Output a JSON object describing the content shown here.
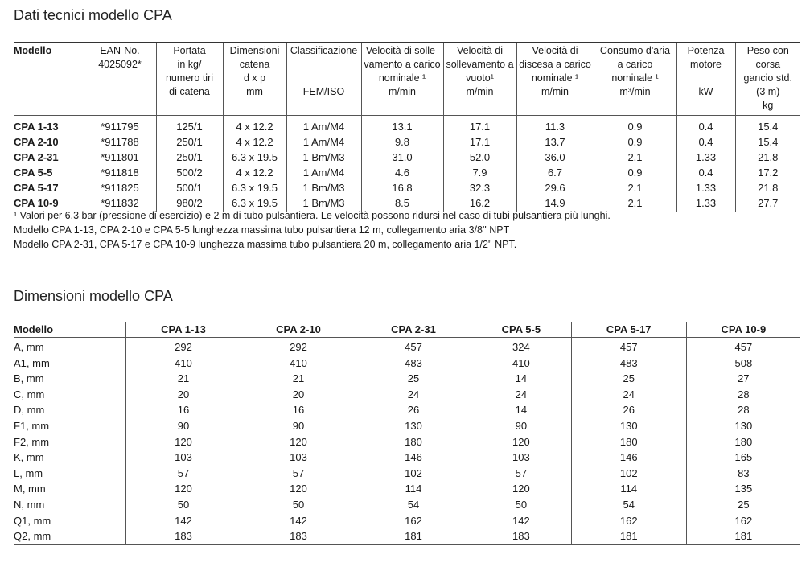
{
  "tech": {
    "title": "Dati tecnici modello CPA",
    "headers": [
      [
        "Modello"
      ],
      [
        "EAN-No.",
        "4025092*"
      ],
      [
        "Portata",
        "in kg/",
        "numero tiri",
        "di catena"
      ],
      [
        "Dimensioni",
        "catena",
        "d x p",
        "mm"
      ],
      [
        "Classificazione",
        "",
        "",
        "FEM/ISO"
      ],
      [
        "Velocità di solle-",
        "vamento a carico",
        "nominale ¹",
        "m/min"
      ],
      [
        "Velocità di",
        "sollevamento a",
        "vuoto¹",
        "m/min"
      ],
      [
        "Velocità di",
        "discesa a carico",
        "nominale ¹",
        "m/min"
      ],
      [
        "Consumo d'aria",
        "a carico",
        "nominale ¹",
        "m³/min"
      ],
      [
        "Potenza",
        "motore",
        "",
        "kW"
      ],
      [
        "Peso con corsa",
        "gancio std.",
        "(3 m)",
        "kg"
      ]
    ],
    "rows": [
      [
        "CPA 1-13",
        "*911795",
        "125/1",
        "4 x 12.2",
        "1 Am/M4",
        "13.1",
        "17.1",
        "11.3",
        "0.9",
        "0.4",
        "15.4"
      ],
      [
        "CPA 2-10",
        "*911788",
        "250/1",
        "4 x 12.2",
        "1 Am/M4",
        "9.8",
        "17.1",
        "13.7",
        "0.9",
        "0.4",
        "15.4"
      ],
      [
        "CPA 2-31",
        "*911801",
        "250/1",
        "6.3 x 19.5",
        "1 Bm/M3",
        "31.0",
        "52.0",
        "36.0",
        "2.1",
        "1.33",
        "21.8"
      ],
      [
        "CPA 5-5",
        "*911818",
        "500/2",
        "4 x 12.2",
        "1 Am/M4",
        "4.6",
        "7.9",
        "6.7",
        "0.9",
        "0.4",
        "17.2"
      ],
      [
        "CPA 5-17",
        "*911825",
        "500/1",
        "6.3 x 19.5",
        "1 Bm/M3",
        "16.8",
        "32.3",
        "29.6",
        "2.1",
        "1.33",
        "21.8"
      ],
      [
        "CPA 10-9",
        "*911832",
        "980/2",
        "6.3 x 19.5",
        "1 Bm/M3",
        "8.5",
        "16.2",
        "14.9",
        "2.1",
        "1.33",
        "27.7"
      ]
    ],
    "notes": [
      "¹ Valori per 6.3 bar (pressione di esercizio) e 2 m di tubo pulsantiera. Le velocità possono ridursi nel caso di tubi pulsantiera più lunghi.",
      "Modello CPA 1-13, CPA 2-10 e CPA 5-5 lunghezza massima tubo pulsantiera 12 m, collegamento aria 3/8'' NPT",
      "Modello CPA 2-31, CPA 5-17 e CPA 10-9 lunghezza massima tubo pulsantiera 20 m, collegamento aria 1/2'' NPT."
    ]
  },
  "dims": {
    "title": "Dimensioni modello CPA",
    "headers": [
      "Modello",
      "CPA 1-13",
      "CPA 2-10",
      "CPA 2-31",
      "CPA 5-5",
      "CPA 5-17",
      "CPA 10-9"
    ],
    "rows": [
      [
        "A, mm",
        "292",
        "292",
        "457",
        "324",
        "457",
        "457"
      ],
      [
        "A1, mm",
        "410",
        "410",
        "483",
        "410",
        "483",
        "508"
      ],
      [
        "B, mm",
        "21",
        "21",
        "25",
        "14",
        "25",
        "27"
      ],
      [
        "C, mm",
        "20",
        "20",
        "24",
        "24",
        "24",
        "28"
      ],
      [
        "D, mm",
        "16",
        "16",
        "26",
        "14",
        "26",
        "28"
      ],
      [
        "F1, mm",
        "90",
        "90",
        "130",
        "90",
        "130",
        "130"
      ],
      [
        "F2, mm",
        "120",
        "120",
        "180",
        "120",
        "180",
        "180"
      ],
      [
        "K, mm",
        "103",
        "103",
        "146",
        "103",
        "146",
        "165"
      ],
      [
        "L, mm",
        "57",
        "57",
        "102",
        "57",
        "102",
        "83"
      ],
      [
        "M, mm",
        "120",
        "120",
        "114",
        "120",
        "114",
        "135"
      ],
      [
        "N, mm",
        "50",
        "50",
        "54",
        "50",
        "54",
        "25"
      ],
      [
        "Q1, mm",
        "142",
        "142",
        "162",
        "142",
        "162",
        "162"
      ],
      [
        "Q2, mm",
        "183",
        "183",
        "181",
        "183",
        "181",
        "181"
      ]
    ]
  }
}
